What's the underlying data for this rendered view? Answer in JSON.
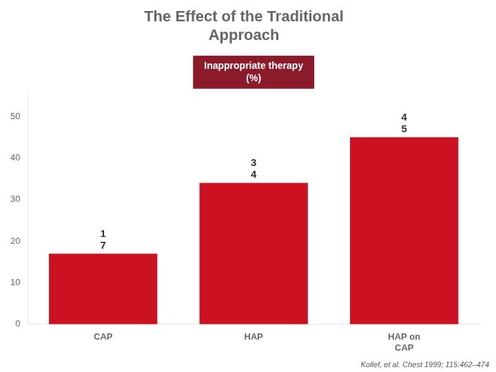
{
  "chart_data": {
    "type": "bar",
    "title": "The Effect of the Traditional\nApproach",
    "categories": [
      "CAP",
      "HAP",
      "HAP on\nCAP"
    ],
    "values": [
      17,
      34,
      45
    ],
    "value_labels": [
      "1\n7",
      "3\n4",
      "4\n5"
    ],
    "data_labels": true,
    "color": "#cc1122",
    "ylim": [
      0,
      55
    ],
    "yticks": [
      0,
      10,
      20,
      30,
      40,
      50
    ],
    "grid": false,
    "annotations": [
      "Inappropriate therapy\n(%)",
      "Kollef, et al. Chest 1999; 115:462–474"
    ]
  }
}
